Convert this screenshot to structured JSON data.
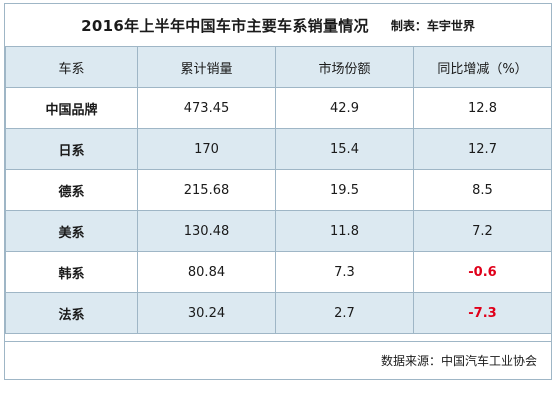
{
  "title": "2016年上半年中国车市主要车系销量情况",
  "source": "制表：车宇世界",
  "columns": [
    "车系",
    "累计销量",
    "市场份额",
    "同比增减（%）"
  ],
  "rows": [
    {
      "name": "中国品牌",
      "sales": "473.45",
      "share": "42.9",
      "yoy": "12.8"
    },
    {
      "name": "日系",
      "sales": "170",
      "share": "15.4",
      "yoy": "12.7"
    },
    {
      "name": "德系",
      "sales": "215.68",
      "share": "19.5",
      "yoy": "8.5"
    },
    {
      "name": "美系",
      "sales": "130.48",
      "share": "11.8",
      "yoy": "7.2"
    },
    {
      "name": "韩系",
      "sales": "80.84",
      "share": "7.3",
      "yoy": "-0.6"
    },
    {
      "name": "法系",
      "sales": "30.24",
      "share": "2.7",
      "yoy": "-7.3"
    }
  ],
  "footer": "数据来源：中国汽车工业协会",
  "colors": {
    "header_bg": "#dce9f1",
    "negative": "#e0001a",
    "border": "#9fb6c6"
  }
}
